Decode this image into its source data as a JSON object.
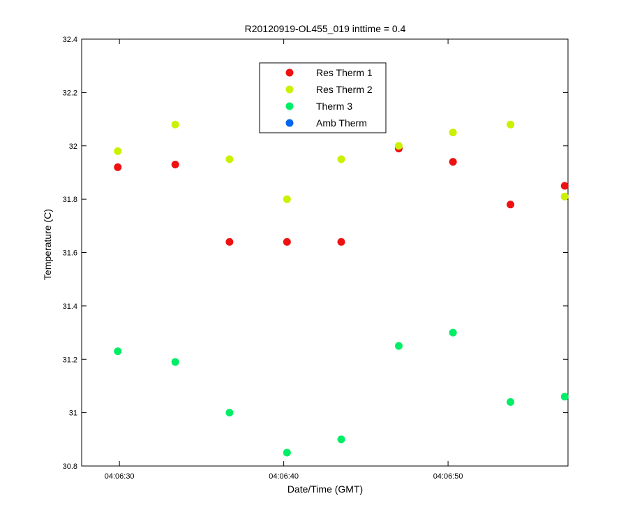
{
  "chart_data": {
    "type": "scatter",
    "title": "R20120919-OL455_019 inttime = 0.4",
    "xlabel": "Date/Time (GMT)",
    "ylabel": "Temperature (C)",
    "x_unit": "seconds after 04:06:00 GMT",
    "xlim": [
      27.7,
      57.3
    ],
    "ylim": [
      30.8,
      32.4
    ],
    "yticks": [
      "30.8",
      "31",
      "31.2",
      "31.4",
      "31.6",
      "31.8",
      "32",
      "32.2",
      "32.4"
    ],
    "xticks": [
      {
        "value": 30,
        "label": "04:06:30"
      },
      {
        "value": 40,
        "label": "04:06:40"
      },
      {
        "value": 50,
        "label": "04:06:50"
      }
    ],
    "x": [
      29.9,
      33.4,
      36.7,
      40.2,
      43.5,
      47.0,
      50.3,
      53.8,
      57.1
    ],
    "legend_position": "top-center",
    "grid": false,
    "series": [
      {
        "name": "Res Therm 1",
        "color": "#ee1111",
        "values": [
          31.92,
          31.93,
          31.64,
          31.64,
          31.64,
          31.99,
          31.94,
          31.78,
          31.85
        ]
      },
      {
        "name": "Res Therm 2",
        "color": "#ccf000",
        "values": [
          31.98,
          32.08,
          31.95,
          31.8,
          31.95,
          32.0,
          32.05,
          32.08,
          31.81
        ]
      },
      {
        "name": "Therm 3",
        "color": "#00ee66",
        "values": [
          31.23,
          31.19,
          31.0,
          30.85,
          30.9,
          31.25,
          31.3,
          31.04,
          31.06
        ]
      },
      {
        "name": "Amb Therm",
        "color": "#0066ee",
        "values": []
      }
    ]
  }
}
